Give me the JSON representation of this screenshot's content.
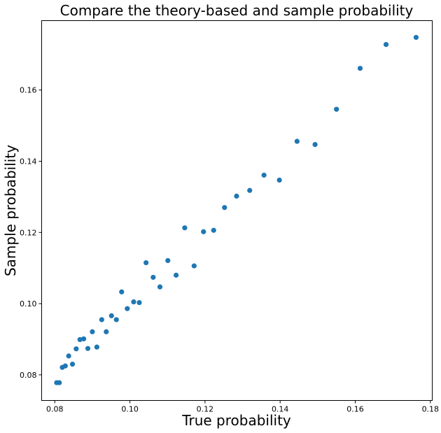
{
  "chart_data": {
    "type": "scatter",
    "title": "Compare the theory-based and sample probability",
    "xlabel": "True probability",
    "ylabel": "Sample probability",
    "xlim": [
      0.0765,
      0.1805
    ],
    "ylim": [
      0.0728,
      0.1795
    ],
    "xticks": [
      0.08,
      0.1,
      0.12,
      0.14,
      0.16,
      0.18
    ],
    "xtick_labels": [
      "0.08",
      "0.10",
      "0.12",
      "0.14",
      "0.16",
      "0.18"
    ],
    "yticks": [
      0.08,
      0.1,
      0.12,
      0.14,
      0.16
    ],
    "ytick_labels": [
      "0.08",
      "0.10",
      "0.12",
      "0.14",
      "0.16"
    ],
    "grid": false,
    "marker_color": "#1f77b4",
    "series": [
      {
        "points": [
          [
            0.0805,
            0.0778
          ],
          [
            0.0812,
            0.0778
          ],
          [
            0.082,
            0.0821
          ],
          [
            0.0828,
            0.0825
          ],
          [
            0.0837,
            0.0853
          ],
          [
            0.0847,
            0.083
          ],
          [
            0.0857,
            0.0873
          ],
          [
            0.0867,
            0.0899
          ],
          [
            0.0877,
            0.0901
          ],
          [
            0.0888,
            0.0874
          ],
          [
            0.09,
            0.0921
          ],
          [
            0.0912,
            0.0878
          ],
          [
            0.0925,
            0.0955
          ],
          [
            0.0937,
            0.0921
          ],
          [
            0.0951,
            0.0966
          ],
          [
            0.0964,
            0.0955
          ],
          [
            0.0978,
            0.1033
          ],
          [
            0.0993,
            0.0986
          ],
          [
            0.101,
            0.1005
          ],
          [
            0.1025,
            0.1003
          ],
          [
            0.1043,
            0.1115
          ],
          [
            0.1062,
            0.1074
          ],
          [
            0.108,
            0.1047
          ],
          [
            0.1101,
            0.1121
          ],
          [
            0.1123,
            0.108
          ],
          [
            0.1146,
            0.1213
          ],
          [
            0.1171,
            0.1106
          ],
          [
            0.1196,
            0.1202
          ],
          [
            0.1223,
            0.1206
          ],
          [
            0.1252,
            0.127
          ],
          [
            0.1284,
            0.1302
          ],
          [
            0.1319,
            0.1318
          ],
          [
            0.1357,
            0.1361
          ],
          [
            0.1398,
            0.1347
          ],
          [
            0.1445,
            0.1456
          ],
          [
            0.1493,
            0.1447
          ],
          [
            0.155,
            0.1546
          ],
          [
            0.1613,
            0.1661
          ],
          [
            0.1682,
            0.1728
          ],
          [
            0.1762,
            0.1748
          ]
        ]
      }
    ]
  }
}
